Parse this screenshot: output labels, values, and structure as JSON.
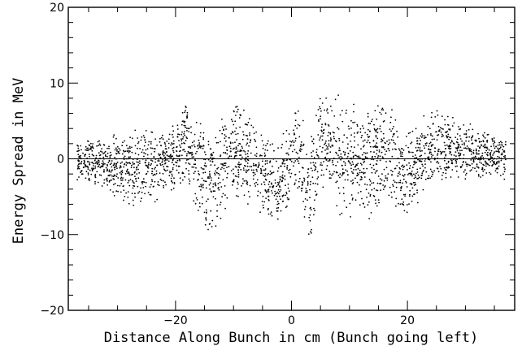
{
  "chart_data": {
    "type": "scatter",
    "title": "",
    "xlabel": "Distance Along Bunch in cm (Bunch going left)",
    "ylabel": "Energy Spread in MeV",
    "xlim": [
      -38.5,
      38.5
    ],
    "ylim": [
      -20,
      20
    ],
    "x_ticks": [
      -20,
      0,
      20
    ],
    "x_tick_labels": [
      "−20",
      "0",
      "20"
    ],
    "y_ticks": [
      -20,
      -10,
      0,
      10,
      20
    ],
    "y_tick_labels": [
      "−20",
      "−10",
      "0",
      "10",
      "20"
    ],
    "grid": false,
    "legend": "none",
    "marker_color": "#000000",
    "zero_line": true,
    "wave_envelope": [
      {
        "x": -36,
        "low": -3,
        "high": 3
      },
      {
        "x": -27,
        "low": -7,
        "high": 4
      },
      {
        "x": -20,
        "low": -5,
        "high": 5
      },
      {
        "x": -18,
        "low": -3,
        "high": 8
      },
      {
        "x": -15,
        "low": -11.5,
        "high": 4
      },
      {
        "x": -9,
        "low": -6,
        "high": 9
      },
      {
        "x": -5,
        "low": -8,
        "high": 4
      },
      {
        "x": -2,
        "low": -10,
        "high": 2
      },
      {
        "x": 1,
        "low": -4,
        "high": 10
      },
      {
        "x": 3,
        "low": -13,
        "high": 2
      },
      {
        "x": 5,
        "low": -3,
        "high": 9
      },
      {
        "x": 7.5,
        "low": -8,
        "high": 9.5
      },
      {
        "x": 12,
        "low": -9,
        "high": 7
      },
      {
        "x": 17,
        "low": -6,
        "high": 8
      },
      {
        "x": 19,
        "low": -9,
        "high": 4
      },
      {
        "x": 25,
        "low": -3,
        "high": 7
      },
      {
        "x": 36,
        "low": -3,
        "high": 3
      }
    ]
  }
}
